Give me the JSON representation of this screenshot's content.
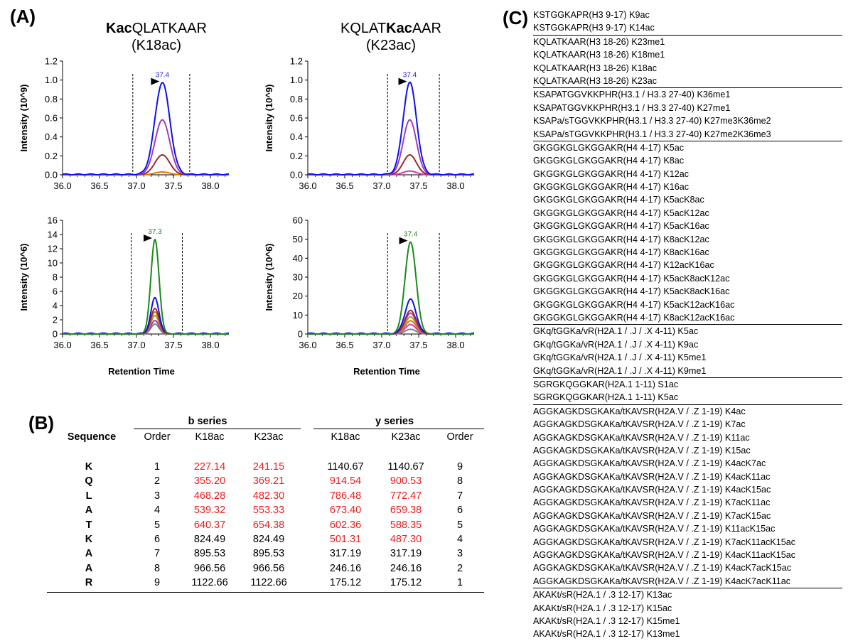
{
  "panel_a": {
    "label": "(A)",
    "titles": [
      {
        "bold": "Kac",
        "rest": "QLATKAAR",
        "sub": "(K18ac)"
      },
      {
        "pre": "KQLAT",
        "bold": "Kac",
        "rest": "AAR",
        "sub": "(K23ac)"
      }
    ],
    "xlabel": "Retention Time"
  },
  "chart_data": [
    {
      "type": "line",
      "name": "K18ac-top",
      "ylabel": "Intensity (10^9)",
      "xlim": [
        36.0,
        38.25
      ],
      "ylim": [
        0,
        1.2
      ],
      "xticks": [
        36.0,
        36.5,
        37.0,
        37.5,
        38.0
      ],
      "xtick_labels": [
        "36.0",
        "36.5",
        "37.0",
        "37.5",
        "38.0"
      ],
      "yticks": [
        0,
        0.2,
        0.4,
        0.6,
        0.8,
        1.0,
        1.2
      ],
      "ytick_labels": [
        "0.0",
        "0.2",
        "0.4",
        "0.6",
        "0.8",
        "1.0",
        "1.2"
      ],
      "peak_label": "37.4",
      "peak_color": "#1a1aff",
      "peak_x": 37.35,
      "boundaries": [
        36.95,
        37.72
      ],
      "series": [
        {
          "name": "blue",
          "color": "#1010ee",
          "peak": 0.97,
          "center": 37.35,
          "width": 0.1
        },
        {
          "name": "purple",
          "color": "#9a3fc2",
          "peak": 0.58,
          "center": 37.35,
          "width": 0.1
        },
        {
          "name": "brown",
          "color": "#9c2a2a",
          "peak": 0.21,
          "center": 37.35,
          "width": 0.1
        },
        {
          "name": "orange",
          "color": "#e07b00",
          "peak": 0.03,
          "center": 37.35,
          "width": 0.1
        }
      ]
    },
    {
      "type": "line",
      "name": "K23ac-top",
      "ylabel": "Intensity (10^9)",
      "xlim": [
        36.0,
        38.25
      ],
      "ylim": [
        0,
        1.2
      ],
      "xticks": [
        36.0,
        36.5,
        37.0,
        37.5,
        38.0
      ],
      "xtick_labels": [
        "36.0",
        "36.5",
        "37.0",
        "37.5",
        "38.0"
      ],
      "yticks": [
        0,
        0.2,
        0.4,
        0.6,
        0.8,
        1.0,
        1.2
      ],
      "ytick_labels": [
        "0.0",
        "0.2",
        "0.4",
        "0.6",
        "0.8",
        "1.0",
        "1.2"
      ],
      "peak_label": "37.4",
      "peak_color": "#1a1aff",
      "peak_x": 37.38,
      "boundaries": [
        37.08,
        37.78
      ],
      "series": [
        {
          "name": "blue",
          "color": "#1010ee",
          "peak": 0.97,
          "center": 37.38,
          "width": 0.09
        },
        {
          "name": "purple",
          "color": "#9a3fc2",
          "peak": 0.58,
          "center": 37.38,
          "width": 0.09
        },
        {
          "name": "brown",
          "color": "#9c2a2a",
          "peak": 0.21,
          "center": 37.38,
          "width": 0.09
        },
        {
          "name": "magenta",
          "color": "#e030c0",
          "peak": 0.04,
          "center": 37.38,
          "width": 0.09
        }
      ]
    },
    {
      "type": "line",
      "name": "K18ac-bottom",
      "ylabel": "Intensity (10^6)",
      "xlim": [
        36.0,
        38.25
      ],
      "ylim": [
        0,
        16
      ],
      "xticks": [
        36.0,
        36.5,
        37.0,
        37.5,
        38.0
      ],
      "xtick_labels": [
        "36.0",
        "36.5",
        "37.0",
        "37.5",
        "38.0"
      ],
      "yticks": [
        0,
        2,
        4,
        6,
        8,
        10,
        12,
        14,
        16
      ],
      "ytick_labels": [
        "0",
        "2",
        "4",
        "6",
        "8",
        "10",
        "12",
        "14",
        "16"
      ],
      "peak_label": "37.3",
      "peak_color": "#1a8a1a",
      "peak_x": 37.25,
      "boundaries": [
        36.93,
        37.62
      ],
      "series": [
        {
          "name": "green",
          "color": "#1a8a1a",
          "peak": 13.3,
          "center": 37.25,
          "width": 0.055
        },
        {
          "name": "blue",
          "color": "#1010ee",
          "peak": 5.0,
          "center": 37.25,
          "width": 0.055
        },
        {
          "name": "brown",
          "color": "#9c2a2a",
          "peak": 3.6,
          "center": 37.25,
          "width": 0.055
        },
        {
          "name": "orange",
          "color": "#e07b00",
          "peak": 3.1,
          "center": 37.25,
          "width": 0.055
        },
        {
          "name": "olive",
          "color": "#a0a020",
          "peak": 2.6,
          "center": 37.25,
          "width": 0.055
        },
        {
          "name": "purple",
          "color": "#9a3fc2",
          "peak": 1.9,
          "center": 37.25,
          "width": 0.055
        },
        {
          "name": "gray",
          "color": "#808080",
          "peak": 1.4,
          "center": 37.25,
          "width": 0.055
        }
      ]
    },
    {
      "type": "line",
      "name": "K23ac-bottom",
      "ylabel": "Intensity (10^6)",
      "xlim": [
        36.0,
        38.25
      ],
      "ylim": [
        0,
        60
      ],
      "xticks": [
        36.0,
        36.5,
        37.0,
        37.5,
        38.0
      ],
      "xtick_labels": [
        "36.0",
        "36.5",
        "37.0",
        "37.5",
        "38.0"
      ],
      "yticks": [
        0,
        10,
        20,
        30,
        40,
        50,
        60
      ],
      "ytick_labels": [
        "0",
        "10",
        "20",
        "30",
        "40",
        "50",
        "60"
      ],
      "peak_label": "37.4",
      "peak_color": "#1a8a1a",
      "peak_x": 37.39,
      "boundaries": [
        37.08,
        37.78
      ],
      "series": [
        {
          "name": "green",
          "color": "#1a8a1a",
          "peak": 48.5,
          "center": 37.39,
          "width": 0.075
        },
        {
          "name": "blue",
          "color": "#1010ee",
          "peak": 18.0,
          "center": 37.39,
          "width": 0.075
        },
        {
          "name": "brown",
          "color": "#9c2a2a",
          "peak": 12.5,
          "center": 37.39,
          "width": 0.075
        },
        {
          "name": "purple",
          "color": "#9a3fc2",
          "peak": 11.0,
          "center": 37.39,
          "width": 0.075
        },
        {
          "name": "olive",
          "color": "#a0a020",
          "peak": 9.0,
          "center": 37.39,
          "width": 0.075
        },
        {
          "name": "orange",
          "color": "#e07b00",
          "peak": 7.0,
          "center": 37.39,
          "width": 0.075
        },
        {
          "name": "magenta",
          "color": "#e030c0",
          "peak": 5.0,
          "center": 37.39,
          "width": 0.075
        },
        {
          "name": "gray",
          "color": "#808080",
          "peak": 2.5,
          "center": 37.39,
          "width": 0.075
        }
      ]
    }
  ],
  "panel_b": {
    "label": "(B)",
    "b_series": "b series",
    "y_series": "y series",
    "headers": {
      "sequence": "Sequence",
      "order": "Order",
      "k18": "K18ac",
      "k23": "K23ac",
      "k18y": "K18ac",
      "k23y": "K23ac",
      "order_y": "Order"
    },
    "rows": [
      {
        "res": "K",
        "bo": "1",
        "b18": "227.14",
        "b23": "241.15",
        "y18": "1140.67",
        "y23": "1140.67",
        "yo": "9",
        "r_b18": true,
        "r_b23": true,
        "r_y18": false,
        "r_y23": false
      },
      {
        "res": "Q",
        "bo": "2",
        "b18": "355.20",
        "b23": "369.21",
        "y18": "914.54",
        "y23": "900.53",
        "yo": "8",
        "r_b18": true,
        "r_b23": true,
        "r_y18": true,
        "r_y23": true
      },
      {
        "res": "L",
        "bo": "3",
        "b18": "468.28",
        "b23": "482.30",
        "y18": "786.48",
        "y23": "772.47",
        "yo": "7",
        "r_b18": true,
        "r_b23": true,
        "r_y18": true,
        "r_y23": true
      },
      {
        "res": "A",
        "bo": "4",
        "b18": "539.32",
        "b23": "553.33",
        "y18": "673.40",
        "y23": "659.38",
        "yo": "6",
        "r_b18": true,
        "r_b23": true,
        "r_y18": true,
        "r_y23": true
      },
      {
        "res": "T",
        "bo": "5",
        "b18": "640.37",
        "b23": "654.38",
        "y18": "602.36",
        "y23": "588.35",
        "yo": "5",
        "r_b18": true,
        "r_b23": true,
        "r_y18": true,
        "r_y23": true
      },
      {
        "res": "K",
        "bo": "6",
        "b18": "824.49",
        "b23": "824.49",
        "y18": "501.31",
        "y23": "487.30",
        "yo": "4",
        "r_b18": false,
        "r_b23": false,
        "r_y18": true,
        "r_y23": true
      },
      {
        "res": "A",
        "bo": "7",
        "b18": "895.53",
        "b23": "895.53",
        "y18": "317.19",
        "y23": "317.19",
        "yo": "3",
        "r_b18": false,
        "r_b23": false,
        "r_y18": false,
        "r_y23": false
      },
      {
        "res": "A",
        "bo": "8",
        "b18": "966.56",
        "b23": "966.56",
        "y18": "246.16",
        "y23": "246.16",
        "yo": "2",
        "r_b18": false,
        "r_b23": false,
        "r_y18": false,
        "r_y23": false
      },
      {
        "res": "R",
        "bo": "9",
        "b18": "1122.66",
        "b23": "1122.66",
        "y18": "175.12",
        "y23": "175.12",
        "yo": "1",
        "r_b18": false,
        "r_b23": false,
        "r_y18": false,
        "r_y23": false
      }
    ],
    "red_color": "#e8201f"
  },
  "panel_c": {
    "label": "(C)",
    "groups": [
      [
        "KSTGGKAPR(H3 9-17) K9ac",
        "KSTGGKAPR(H3 9-17) K14ac"
      ],
      [
        "KQLATKAAR(H3 18-26) K23me1",
        "KQLATKAAR(H3 18-26) K18me1",
        "KQLATKAAR(H3 18-26) K18ac",
        "KQLATKAAR(H3 18-26) K23ac"
      ],
      [
        "KSAPATGGVKKPHR(H3.1 / H3.3 27-40) K36me1",
        "KSAPATGGVKKPHR(H3.1 / H3.3 27-40) K27me1",
        "KSAPa/sTGGVKKPHR(H3.1 / H3.3 27-40) K27me3K36me2",
        "KSAPa/sTGGVKKPHR(H3.1 / H3.3 27-40) K27me2K36me3"
      ],
      [
        "GKGGKGLGKGGAKR(H4 4-17) K5ac",
        "GKGGKGLGKGGAKR(H4 4-17) K8ac",
        "GKGGKGLGKGGAKR(H4 4-17) K12ac",
        "GKGGKGLGKGGAKR(H4 4-17) K16ac",
        "GKGGKGLGKGGAKR(H4 4-17) K5acK8ac",
        "GKGGKGLGKGGAKR(H4 4-17) K5acK12ac",
        "GKGGKGLGKGGAKR(H4 4-17) K5acK16ac",
        "GKGGKGLGKGGAKR(H4 4-17) K8acK12ac",
        "GKGGKGLGKGGAKR(H4 4-17) K8acK16ac",
        "GKGGKGLGKGGAKR(H4 4-17) K12acK16ac",
        "GKGGKGLGKGGAKR(H4 4-17) K5acK8acK12ac",
        "GKGGKGLGKGGAKR(H4 4-17) K5acK8acK16ac",
        "GKGGKGLGKGGAKR(H4 4-17) K5acK12acK16ac",
        "GKGGKGLGKGGAKR(H4 4-17) K8acK12acK16ac"
      ],
      [
        "GKq/tGGKa/vR(H2A.1 / .J / .X 4-11) K5ac",
        "GKq/tGGKa/vR(H2A.1 / .J / .X 4-11) K9ac",
        "GKq/tGGKa/vR(H2A.1 / .J / .X 4-11) K5me1",
        "GKq/tGGKa/vR(H2A.1 / .J / .X 4-11) K9me1"
      ],
      [
        "SGRGKQGGKAR(H2A.1 1-11) S1ac",
        "SGRGKQGGKAR(H2A.1 1-11) K5ac"
      ],
      [
        "AGGKAGKDSGKAKa/tKAVSR(H2A.V / .Z 1-19) K4ac",
        "AGGKAGKDSGKAKa/tKAVSR(H2A.V / .Z 1-19) K7ac",
        "AGGKAGKDSGKAKa/tKAVSR(H2A.V / .Z 1-19) K11ac",
        "AGGKAGKDSGKAKa/tKAVSR(H2A.V / .Z 1-19) K15ac",
        "AGGKAGKDSGKAKa/tKAVSR(H2A.V / .Z 1-19) K4acK7ac",
        "AGGKAGKDSGKAKa/tKAVSR(H2A.V / .Z 1-19) K4acK11ac",
        "AGGKAGKDSGKAKa/tKAVSR(H2A.V / .Z 1-19) K4acK15ac",
        "AGGKAGKDSGKAKa/tKAVSR(H2A.V / .Z 1-19) K7acK11ac",
        "AGGKAGKDSGKAKa/tKAVSR(H2A.V / .Z 1-19) K7acK15ac",
        "AGGKAGKDSGKAKa/tKAVSR(H2A.V / .Z 1-19) K11acK15ac",
        "AGGKAGKDSGKAKa/tKAVSR(H2A.V / .Z 1-19) K7acK11acK15ac",
        "AGGKAGKDSGKAKa/tKAVSR(H2A.V / .Z 1-19) K4acK11acK15ac",
        "AGGKAGKDSGKAKa/tKAVSR(H2A.V / .Z 1-19) K4acK7acK15ac",
        "AGGKAGKDSGKAKa/tKAVSR(H2A.V / .Z 1-19) K4acK7acK11ac"
      ],
      [
        "AKAKt/sR(H2A.1 / .3 12-17) K13ac",
        "AKAKt/sR(H2A.1 / .3 12-17) K15ac",
        "AKAKt/sR(H2A.1 / .3 12-17) K15me1",
        "AKAKt/sR(H2A.1 / .3 12-17) K13me1"
      ]
    ]
  }
}
